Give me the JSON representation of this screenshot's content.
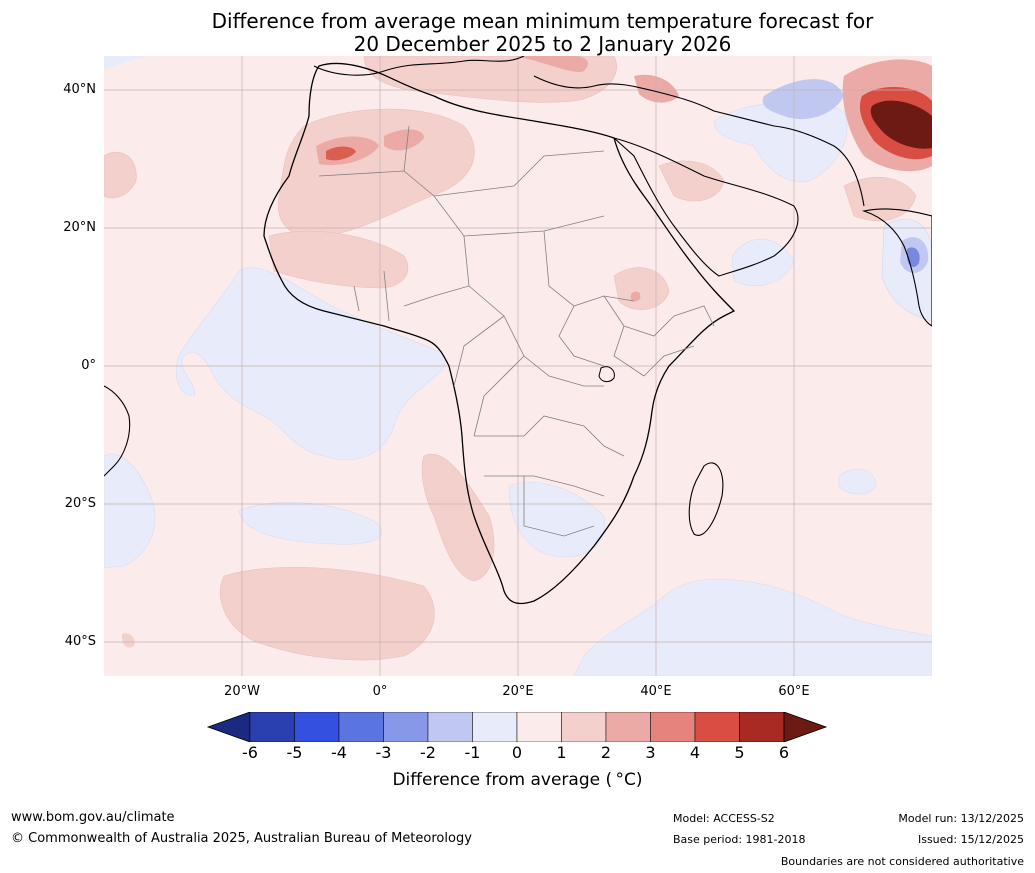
{
  "title": {
    "line1": "Difference from average mean minimum temperature forecast for",
    "line2": "20 December 2025 to 2 January 2026"
  },
  "map": {
    "region": "Africa",
    "lat_labels": [
      "40°N",
      "20°N",
      "0°",
      "20°S",
      "40°S"
    ],
    "lon_labels": [
      "20°W",
      "0°",
      "20°E",
      "40°E",
      "60°E"
    ],
    "colors": {
      "land_outline": "#000000",
      "border": "#808080",
      "grid": "#b0a0a0"
    }
  },
  "colorbar": {
    "ticks": [
      "-6",
      "-5",
      "-4",
      "-3",
      "-2",
      "-1",
      "0",
      "1",
      "2",
      "3",
      "4",
      "5",
      "6"
    ],
    "colors": [
      "#1a2a80",
      "#2a3fb0",
      "#3350e0",
      "#5a75e0",
      "#8898e8",
      "#c0c8f2",
      "#e8ecfa",
      "#fbeceb",
      "#f3d0cc",
      "#ecaaa6",
      "#e5837c",
      "#d94d42",
      "#a82a22",
      "#6e1a14"
    ],
    "label": "Difference from average ( °C)"
  },
  "footer": {
    "url": "www.bom.gov.au/climate",
    "copyright": "© Commonwealth of Australia 2025, Australian Bureau of Meteorology",
    "model": "Model: ACCESS-S2",
    "base_period": "Base period: 1981-2018",
    "model_run": "Model run: 13/12/2025",
    "issued": "Issued: 15/12/2025",
    "disclaimer": "Boundaries are not considered authoritative"
  }
}
